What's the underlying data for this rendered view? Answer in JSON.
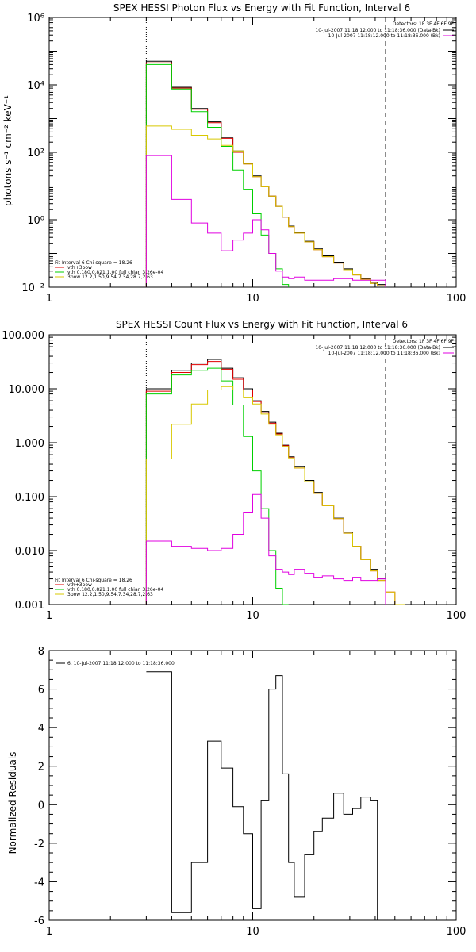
{
  "chart_data": [
    {
      "type": "line",
      "title": "SPEX HESSI Photon Flux vs Energy with Fit Function, Interval 6",
      "ylabel": "photons s⁻¹ cm⁻² keV⁻¹",
      "xlabel": "",
      "xscale": "log",
      "yscale": "log",
      "xlim": [
        1,
        100
      ],
      "ylim": [
        0.01,
        1000000
      ],
      "xticks": [
        1,
        10,
        100
      ],
      "xtick_labels": [
        "1",
        "10",
        "100"
      ],
      "yticks": [
        0.01,
        1,
        100,
        10000,
        1000000
      ],
      "ytick_labels": [
        "10⁻²",
        "10⁰",
        "10²",
        "10⁴",
        "10⁶"
      ],
      "vlines": [
        {
          "x": 3,
          "style": "dotted"
        },
        {
          "x": 45,
          "style": "dashed"
        }
      ],
      "legend_top": {
        "header": "Detectors: 1F 3F 4F 6F 9F",
        "entries": [
          {
            "text": "10-Jul-2007 11:18:12.000 to 11:18:36.000 (Data-Bk)",
            "color": "#000000"
          },
          {
            "text": "10-Jul-2007 11:18:12.000 to 11:18:36.000 (Bk)",
            "color": "#e000e0"
          }
        ]
      },
      "legend_fit": {
        "header": "Fit Interval 6   Chi-square = 18.26",
        "entries": [
          {
            "text": "vth+3pow",
            "color": "#e00000"
          },
          {
            "text": "vth 0.180,0.821,1.00  full chian 3.26e-04",
            "color": "#00d000"
          },
          {
            "text": "3pow 12.2,1.50,9.54,7.34,28.7,2.63",
            "color": "#d8c800"
          }
        ]
      },
      "edges": [
        3,
        4,
        5,
        6,
        7,
        8,
        9,
        10,
        11,
        12,
        13,
        14,
        15,
        16,
        18,
        20,
        22,
        25,
        28,
        31,
        34,
        38,
        41,
        45,
        50,
        56,
        63
      ],
      "series": [
        {
          "name": "data",
          "color": "#000000",
          "values": [
            50000,
            8500,
            2000,
            800,
            270,
            110,
            46,
            20,
            10,
            5,
            2.5,
            1.2,
            0.65,
            0.42,
            0.23,
            0.14,
            0.085,
            0.055,
            0.035,
            0.024,
            0.018,
            0.014,
            0.012
          ]
        },
        {
          "name": "vth+3pow",
          "color": "#e00000",
          "values": [
            45000,
            8000,
            1900,
            750,
            260,
            100,
            45,
            19,
            9.5,
            5,
            2.5,
            1.2,
            0.62,
            0.4,
            0.22,
            0.13,
            0.08,
            0.052,
            0.033,
            0.023,
            0.017,
            0.013,
            0.011
          ]
        },
        {
          "name": "vth",
          "color": "#00d000",
          "values": [
            40000,
            7500,
            1600,
            550,
            150,
            30,
            8,
            1.5,
            0.35,
            0.1,
            0.035,
            0.012
          ]
        },
        {
          "name": "3pow",
          "color": "#d8c800",
          "values": [
            600,
            480,
            320,
            250,
            160,
            110,
            45,
            19,
            9.5,
            5,
            2.5,
            1.2,
            0.62,
            0.4,
            0.22,
            0.13,
            0.08,
            0.052,
            0.033,
            0.023,
            0.017,
            0.013,
            0.011
          ]
        },
        {
          "name": "Bk",
          "color": "#e000e0",
          "values": [
            80,
            4,
            0.8,
            0.4,
            0.12,
            0.25,
            0.4,
            1,
            0.5,
            0.1,
            0.03,
            0.02,
            0.018,
            0.02,
            0.016,
            0.016,
            0.016,
            0.018,
            0.018,
            0.016,
            0.016,
            0.016,
            0.016
          ]
        }
      ]
    },
    {
      "type": "line",
      "title": "SPEX HESSI Count Flux vs Energy with Fit Function, Interval 6",
      "ylabel": "",
      "xlabel": "",
      "xscale": "log",
      "yscale": "log",
      "xlim": [
        1,
        100
      ],
      "ylim": [
        0.001,
        100
      ],
      "xticks": [
        1,
        10,
        100
      ],
      "xtick_labels": [
        "1",
        "10",
        "100"
      ],
      "yticks": [
        0.001,
        0.01,
        0.1,
        1,
        10,
        100
      ],
      "ytick_labels": [
        "0.001",
        "0.010",
        "0.100",
        "1.000",
        "10.000",
        "100.000"
      ],
      "vlines": [
        {
          "x": 3,
          "style": "dotted"
        },
        {
          "x": 45,
          "style": "dashed"
        }
      ],
      "legend_top": {
        "header": "Detectors: 1F 3F 4F 6F 9F",
        "entries": [
          {
            "text": "10-Jul-2007 11:18:12.000 to 11:18:36.000 (Data-Bk)",
            "color": "#000000"
          },
          {
            "text": "10-Jul-2007 11:18:12.000 to 11:18:36.000 (Bk)",
            "color": "#e000e0"
          }
        ]
      },
      "legend_fit": {
        "header": "Fit Interval 6   Chi-square = 18.26",
        "entries": [
          {
            "text": "vth+3pow",
            "color": "#e00000"
          },
          {
            "text": "vth 0.180,0.821,1.00  full chian 3.26e-04",
            "color": "#00d000"
          },
          {
            "text": "3pow 12.2,1.50,9.54,7.34,28.7,2.63",
            "color": "#d8c800"
          }
        ]
      },
      "edges": [
        3,
        4,
        5,
        6,
        7,
        8,
        9,
        10,
        11,
        12,
        13,
        14,
        15,
        16,
        18,
        20,
        22,
        25,
        28,
        31,
        34,
        38,
        41,
        45,
        50,
        56,
        63
      ],
      "series": [
        {
          "name": "data",
          "color": "#000000",
          "values": [
            10,
            22,
            30,
            35,
            24,
            16,
            10,
            6,
            3.8,
            2.4,
            1.5,
            0.9,
            0.55,
            0.36,
            0.2,
            0.12,
            0.07,
            0.04,
            0.022,
            0.012,
            0.007,
            0.0045,
            0.003
          ]
        },
        {
          "name": "vth+3pow",
          "color": "#e00000",
          "values": [
            9,
            20,
            28,
            32,
            23,
            15,
            9.5,
            5.8,
            3.6,
            2.3,
            1.45,
            0.88,
            0.53,
            0.34,
            0.19,
            0.115,
            0.068,
            0.039,
            0.021,
            0.012,
            0.0068,
            0.0042,
            0.0028,
            0.0017,
            0.001
          ]
        },
        {
          "name": "vth",
          "color": "#00d000",
          "values": [
            8,
            18,
            22,
            24,
            14,
            5,
            1.3,
            0.3,
            0.06,
            0.01,
            0.002,
            0.001
          ]
        },
        {
          "name": "3pow",
          "color": "#d8c800",
          "values": [
            0.5,
            2.2,
            5.2,
            9.5,
            11,
            9.5,
            6.8,
            5.2,
            3.4,
            2.2,
            1.4,
            0.85,
            0.52,
            0.34,
            0.19,
            0.115,
            0.068,
            0.039,
            0.021,
            0.012,
            0.0068,
            0.0042,
            0.0028,
            0.0017,
            0.001
          ]
        },
        {
          "name": "Bk",
          "color": "#e000e0",
          "values": [
            0.015,
            0.012,
            0.011,
            0.01,
            0.011,
            0.02,
            0.05,
            0.11,
            0.04,
            0.008,
            0.0045,
            0.004,
            0.0036,
            0.0045,
            0.0038,
            0.0032,
            0.0034,
            0.003,
            0.0028,
            0.0032,
            0.0028,
            0.0028,
            0.003
          ]
        }
      ]
    },
    {
      "type": "line",
      "title": "",
      "ylabel": "Normalized Residuals",
      "xlabel": "",
      "xscale": "log",
      "yscale": "linear",
      "xlim": [
        1,
        100
      ],
      "ylim": [
        -6,
        8
      ],
      "xticks": [
        1,
        10,
        100
      ],
      "xtick_labels": [
        "1",
        "10",
        "100"
      ],
      "yticks": [
        -6,
        -4,
        -2,
        0,
        2,
        4,
        6,
        8
      ],
      "ytick_labels": [
        "-6",
        "-4",
        "-2",
        "0",
        "2",
        "4",
        "6",
        "8"
      ],
      "legend_top": {
        "header": "",
        "entries": [
          {
            "text": "6. 10-Jul-2007 11:18:12.000 to 11:18:36.000",
            "color": "#000000"
          }
        ]
      },
      "edges": [
        3,
        4,
        5,
        6,
        7,
        8,
        9,
        10,
        11,
        12,
        13,
        14,
        15,
        16,
        18,
        20,
        22,
        25,
        28,
        31,
        34,
        38,
        41,
        45
      ],
      "series": [
        {
          "name": "",
          "color": "#000000",
          "values": [
            6.9,
            -5.6,
            -3.0,
            3.3,
            1.9,
            -0.1,
            -1.5,
            -5.4,
            0.2,
            6.0,
            6.7,
            1.6,
            -3.0,
            -4.8,
            -2.6,
            -1.4,
            -0.7,
            0.6,
            -0.5,
            -0.2,
            0.4,
            0.2
          ]
        }
      ]
    }
  ]
}
